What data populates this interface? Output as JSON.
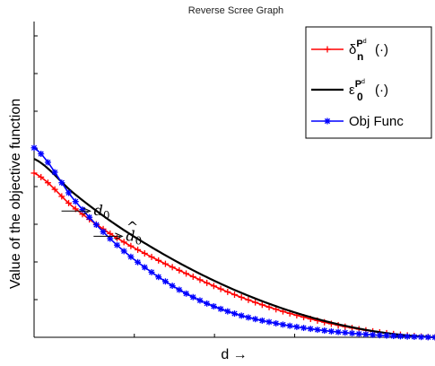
{
  "chart_data": {
    "type": "line",
    "title": "Reverse Scree Graph",
    "xlabel": "d →",
    "ylabel": "Value of the objective function",
    "xlim": [
      0,
      1
    ],
    "ylim": [
      0,
      1
    ],
    "x_ticks_labeled": false,
    "y_ticks_labeled": false,
    "grid": false,
    "legend_position": "top-right",
    "series": [
      {
        "name": "δ_n^{P^d}(·)",
        "legend": {
          "main": "δ",
          "sub": "n",
          "sup": "P",
          "supsup": "d",
          "arg": "(·)"
        },
        "color": "#ff0000",
        "marker": "plus",
        "x": [
          0,
          0.1,
          0.2,
          0.3,
          0.4,
          0.5,
          0.6,
          0.7,
          0.8,
          0.9,
          1.0
        ],
        "y": [
          0.52,
          0.41,
          0.32,
          0.25,
          0.19,
          0.135,
          0.09,
          0.055,
          0.028,
          0.01,
          0.0
        ]
      },
      {
        "name": "ε_0^{P^d}(·)",
        "legend": {
          "main": "ε",
          "sub": "0",
          "sup": "P",
          "supsup": "d",
          "arg": "(·)"
        },
        "color": "#000000",
        "marker": "none",
        "x": [
          0,
          0.1,
          0.2,
          0.3,
          0.4,
          0.5,
          0.6,
          0.7,
          0.8,
          0.9,
          1.0
        ],
        "y": [
          0.565,
          0.455,
          0.36,
          0.28,
          0.21,
          0.15,
          0.1,
          0.06,
          0.03,
          0.01,
          0.0
        ]
      },
      {
        "name": "Obj Func",
        "legend": {
          "main": "Obj Func"
        },
        "color": "#0000ff",
        "marker": "star",
        "x": [
          0,
          0.1,
          0.2,
          0.3,
          0.4,
          0.5,
          0.6,
          0.7,
          0.8,
          0.9,
          1.0
        ],
        "y": [
          0.6,
          0.435,
          0.3,
          0.2,
          0.125,
          0.075,
          0.045,
          0.025,
          0.012,
          0.004,
          0.0
        ]
      }
    ],
    "annotations": [
      {
        "label_main": "d",
        "label_sub": "0",
        "hat": false,
        "x": 0.14,
        "y": 0.4
      },
      {
        "label_main": "d",
        "label_sub": "0",
        "hat": true,
        "x": 0.22,
        "y": 0.32
      }
    ]
  }
}
